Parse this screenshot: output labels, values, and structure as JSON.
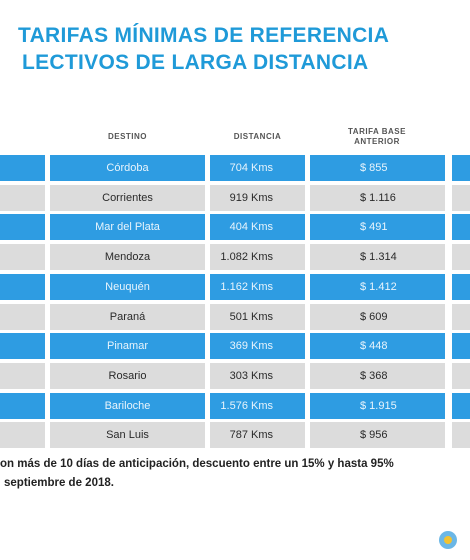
{
  "header": {
    "title_lines": [
      "TARIFAS MÍNIMAS DE REFERENCIA",
      "LECTIVOS DE LARGA DISTANCIA"
    ]
  },
  "table": {
    "columns": [
      "DESTINO",
      "DISTANCIA",
      "TARIFA BASE ANTERIOR"
    ],
    "rows": [
      [
        "Córdoba",
        "704 Kms",
        "$ 855"
      ],
      [
        "Corrientes",
        "919 Kms",
        "$ 1.116"
      ],
      [
        "Mar del Plata",
        "404 Kms",
        "$ 491"
      ],
      [
        "Mendoza",
        "1.082 Kms",
        "$ 1.314"
      ],
      [
        "Neuquén",
        "1.162 Kms",
        "$ 1.412"
      ],
      [
        "Paraná",
        "501 Kms",
        "$ 609"
      ],
      [
        "Pinamar",
        "369 Kms",
        "$ 448"
      ],
      [
        "Rosario",
        "303 Kms",
        "$ 368"
      ],
      [
        "Bariloche",
        "1.576 Kms",
        "$ 1.915"
      ],
      [
        "San Luis",
        "787 Kms",
        "$ 956"
      ]
    ]
  },
  "footer": {
    "lines": [
      "on más de 10 días de anticipación, descuento entre un 15% y hasta 95%",
      "septiembre de 2018."
    ]
  }
}
